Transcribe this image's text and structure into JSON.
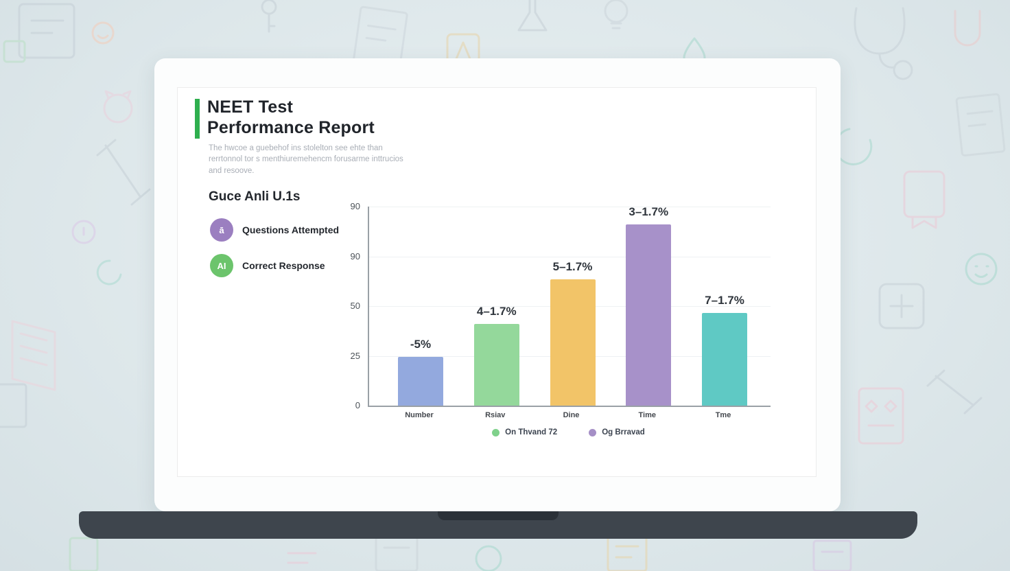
{
  "report": {
    "title_line1": "NEET Test",
    "title_line2": "Performance Report",
    "subtitle": "The hwcoe a guebehof ins stolelton see ehte than rerrtonnol tor s menthiuremehencm forusarme inttrucios and resoove.",
    "section_heading": "Guce Anli U.1s",
    "accent_color": "#2eaf4e",
    "legend_items": [
      {
        "icon_text": "ā",
        "color": "#9b7fc0",
        "label": "Questions Attempted"
      },
      {
        "icon_text": "AI",
        "color": "#6cc46c",
        "label": "Correct Response"
      }
    ]
  },
  "chart_data": {
    "type": "bar",
    "title": "",
    "xlabel": "",
    "ylabel": "",
    "categories": [
      "Number",
      "Rsiav",
      "Dine",
      "Time",
      "Tme"
    ],
    "values": [
      22,
      37,
      57,
      82,
      42
    ],
    "bar_labels": [
      "-5%",
      "4–1.7%",
      "5–1.7%",
      "3–1.7%",
      "7–1.7%"
    ],
    "bar_colors": [
      "#93a9de",
      "#94d89b",
      "#f2c468",
      "#a791c9",
      "#5fc9c4"
    ],
    "y_ticks_top_down": [
      "90",
      "90",
      "50",
      "25",
      "0"
    ],
    "ylim": [
      0,
      90
    ],
    "grid": true,
    "legend_position": "bottom",
    "legend": [
      {
        "label": "On Thvand 72",
        "color": "#7fd18b"
      },
      {
        "label": "Og Brravad",
        "color": "#a58fc6"
      }
    ]
  }
}
